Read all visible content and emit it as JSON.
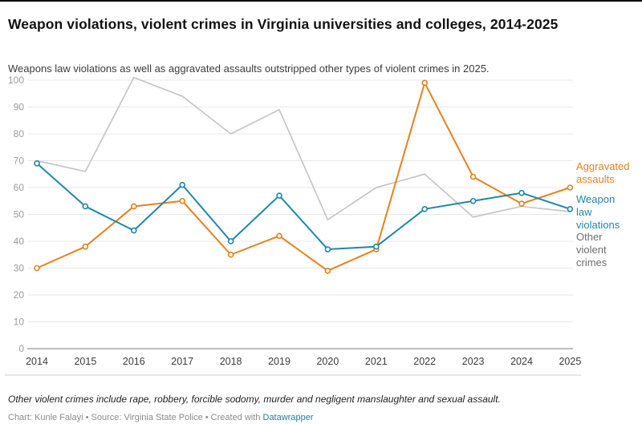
{
  "header": {
    "title": "Weapon violations, violent crimes in Virginia universities and colleges, 2014-2025",
    "subtitle": "Weapons law violations as well as aggravated assaults outstripped other types of violent crimes in 2025."
  },
  "chart_data": {
    "type": "line",
    "x_labels": [
      "2014",
      "2015",
      "2016",
      "2017",
      "2018",
      "2019",
      "2020",
      "2021",
      "2022",
      "2023",
      "2024",
      "2025"
    ],
    "ylim": [
      0,
      100
    ],
    "yticks": [
      0,
      10,
      20,
      30,
      40,
      50,
      60,
      70,
      80,
      90,
      100
    ],
    "grid": true,
    "legend_position": "right",
    "series": [
      {
        "name": "Aggravated assaults",
        "color": "#e8801d",
        "markers": true,
        "values": [
          30,
          38,
          53,
          55,
          35,
          42,
          29,
          37,
          99,
          64,
          54,
          60
        ]
      },
      {
        "name": "Weapon law violations",
        "color": "#1d87ad",
        "markers": true,
        "values": [
          69,
          53,
          44,
          61,
          40,
          57,
          37,
          38,
          52,
          55,
          58,
          52
        ]
      },
      {
        "name": "Other violent crimes",
        "color": "#c6c6c6",
        "markers": false,
        "values": [
          70,
          66,
          101,
          94,
          80,
          89,
          48,
          60,
          65,
          49,
          53,
          51
        ]
      }
    ],
    "legend": [
      {
        "label": "Aggravated assaults",
        "color": "#e8801d"
      },
      {
        "label": "Weapon law violations",
        "color": "#1d87ad"
      },
      {
        "label": "Other violent crimes",
        "color": "#6e6e6e"
      }
    ]
  },
  "footer": {
    "note": "Other violent crimes include rape, robbery, forcible sodomy, murder and negligent manslaughter and sexual assault.",
    "credit_prefix": "Chart: Kunle Falayi • Source: Virginia State Police • Created with ",
    "credit_link": "Datawrapper"
  }
}
